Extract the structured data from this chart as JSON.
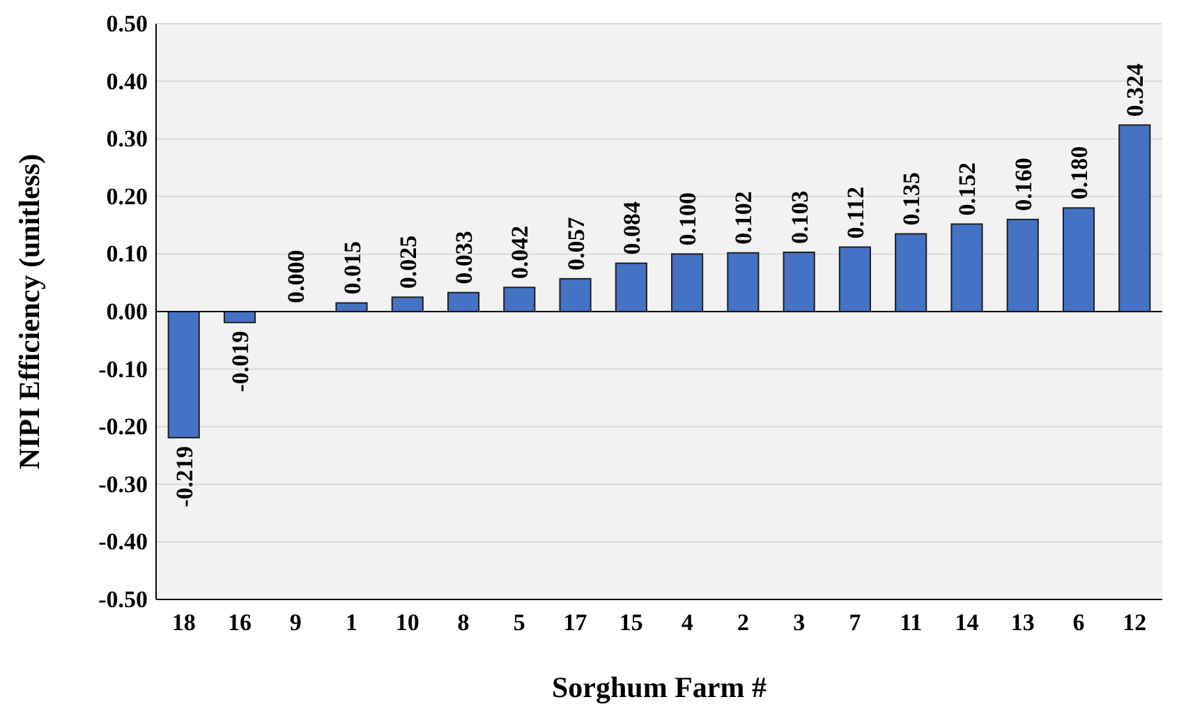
{
  "chart_data": {
    "type": "bar",
    "xlabel": "Sorghum Farm #",
    "ylabel": "NIPI Efficiency (unitless)",
    "categories": [
      "18",
      "16",
      "9",
      "1",
      "10",
      "8",
      "5",
      "17",
      "15",
      "4",
      "2",
      "3",
      "7",
      "11",
      "14",
      "13",
      "6",
      "12"
    ],
    "values": [
      -0.219,
      -0.019,
      0.0,
      0.015,
      0.025,
      0.033,
      0.042,
      0.057,
      0.084,
      0.1,
      0.102,
      0.103,
      0.112,
      0.135,
      0.152,
      0.16,
      0.18,
      0.324
    ],
    "value_labels": [
      "-0.219",
      "-0.019",
      "0.000",
      "0.015",
      "0.025",
      "0.033",
      "0.042",
      "0.057",
      "0.084",
      "0.100",
      "0.102",
      "0.103",
      "0.112",
      "0.135",
      "0.152",
      "0.160",
      "0.180",
      "0.324"
    ],
    "color": "#4472c4",
    "ylim": [
      -0.5,
      0.5
    ],
    "yticks": [
      {
        "value": -0.5,
        "label": "-0.50"
      },
      {
        "value": -0.4,
        "label": "-0.40"
      },
      {
        "value": -0.3,
        "label": "-0.30"
      },
      {
        "value": -0.2,
        "label": "-0.20"
      },
      {
        "value": -0.1,
        "label": "-0.10"
      },
      {
        "value": 0,
        "label": "0.00"
      },
      {
        "value": 0.1,
        "label": "0.10"
      },
      {
        "value": 0.2,
        "label": "0.20"
      },
      {
        "value": 0.3,
        "label": "0.30"
      },
      {
        "value": 0.4,
        "label": "0.40"
      },
      {
        "value": 0.5,
        "label": "0.50"
      }
    ],
    "grid": "y"
  }
}
